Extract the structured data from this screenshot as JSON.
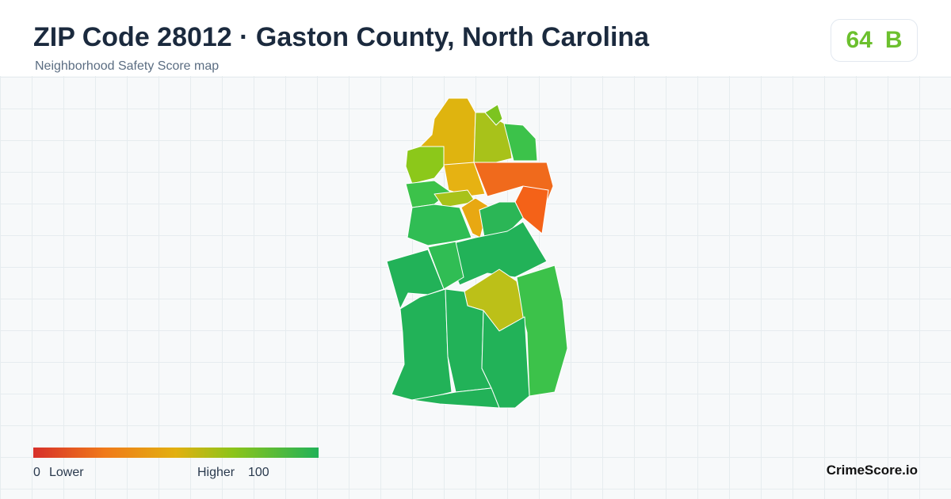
{
  "header": {
    "title": "ZIP Code 28012 · Gaston County, North Carolina",
    "subtitle": "Neighborhood Safety Score map"
  },
  "score": {
    "value": 64,
    "grade": "B"
  },
  "legend": {
    "min": 0,
    "min_label": "Lower",
    "max_label": "Higher",
    "max": 100
  },
  "footer": {
    "brand": "CrimeScore.io"
  }
}
